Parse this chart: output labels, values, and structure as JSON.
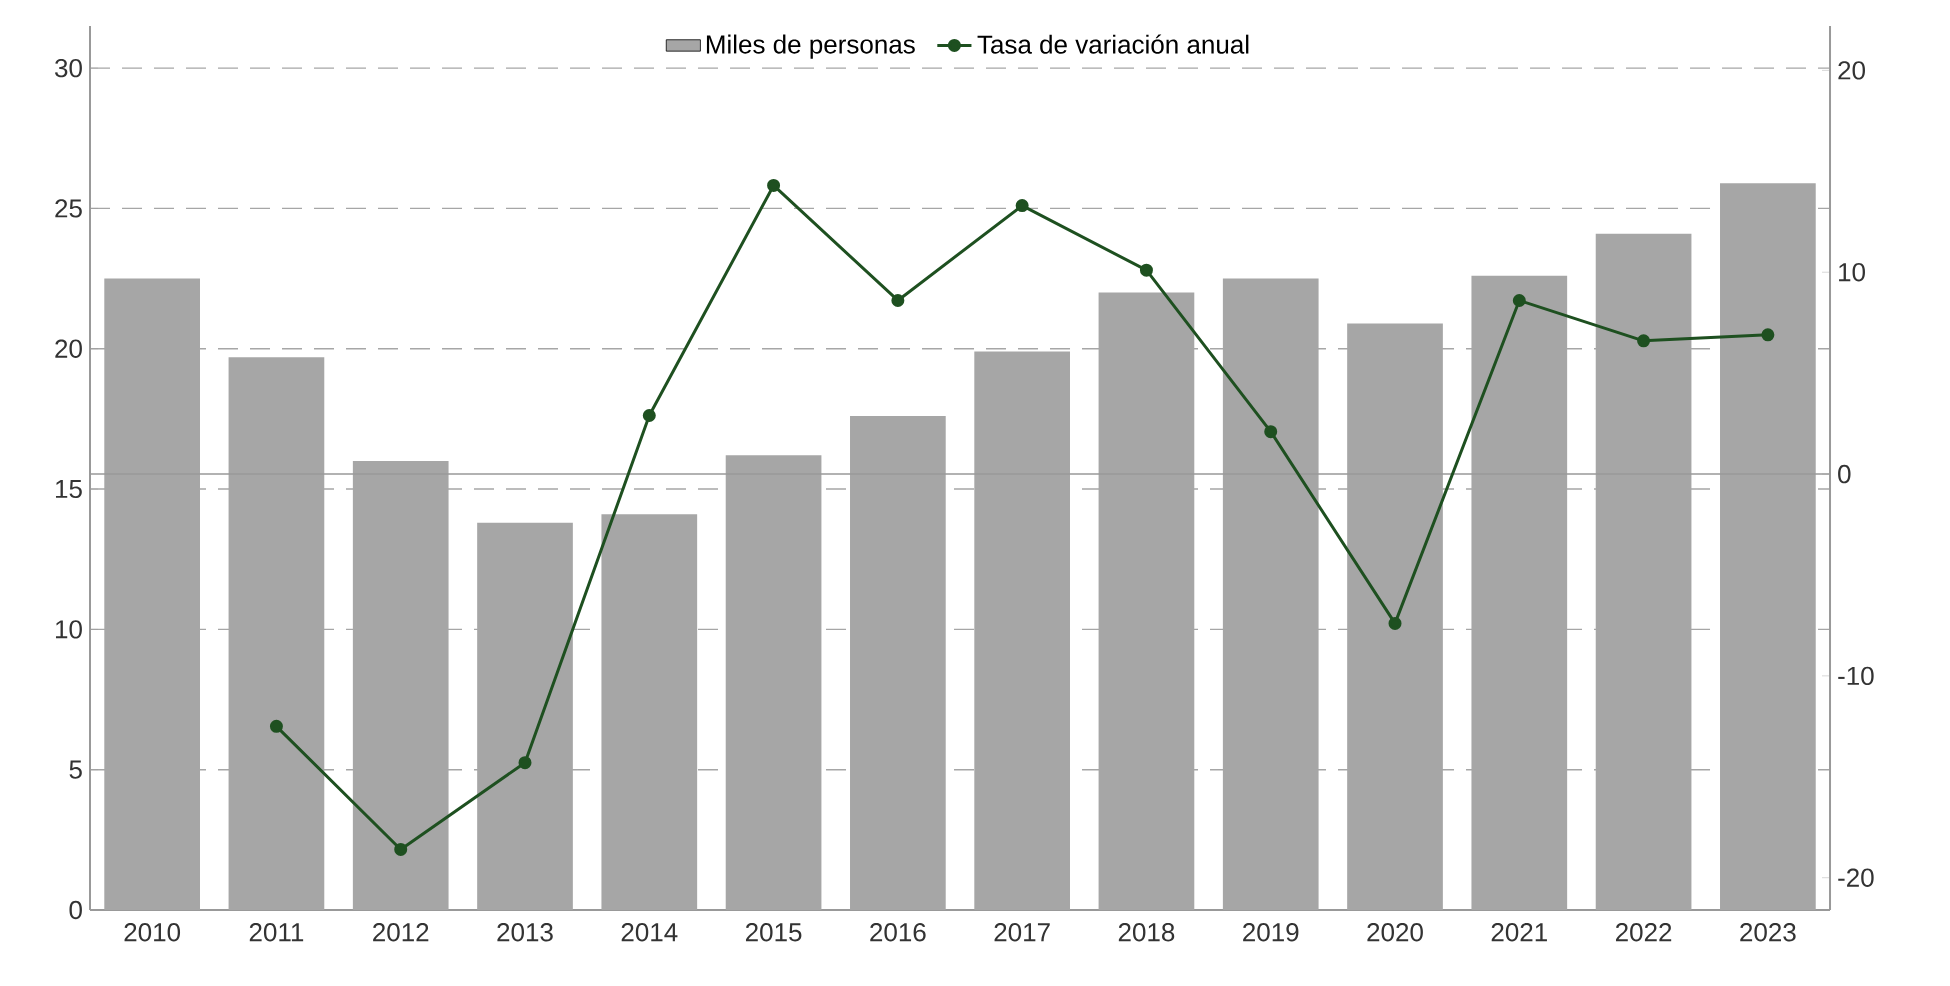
{
  "chart_data": {
    "type": "bar",
    "categories": [
      "2010",
      "2011",
      "2012",
      "2013",
      "2014",
      "2015",
      "2016",
      "2017",
      "2018",
      "2019",
      "2020",
      "2021",
      "2022",
      "2023"
    ],
    "series": [
      {
        "name": "Miles de personas",
        "color": "#a6a6a6",
        "values": [
          22.5,
          19.7,
          16.0,
          13.8,
          14.1,
          16.2,
          17.6,
          19.9,
          22.0,
          22.5,
          20.9,
          22.6,
          24.1,
          25.9
        ]
      },
      {
        "name": "Tasa de variación anual",
        "type": "line",
        "axis": "y2",
        "color": "#1e5020",
        "marker": "circle",
        "values": [
          null,
          -12.5,
          -18.6,
          -14.3,
          2.9,
          14.3,
          8.6,
          13.3,
          10.1,
          2.1,
          -7.4,
          8.6,
          6.6,
          6.9
        ]
      }
    ],
    "ylim": [
      0,
      31.5
    ],
    "yticks": [
      0,
      5,
      10,
      15,
      20,
      25,
      30
    ],
    "y2lim": [
      -21.6,
      22.2
    ],
    "y2ticks": [
      -20,
      -10,
      0,
      10,
      20
    ],
    "ref_lines": [
      {
        "axis": "y2",
        "value": 0,
        "color": "#999999"
      }
    ],
    "grid": "y",
    "legend": "top"
  }
}
